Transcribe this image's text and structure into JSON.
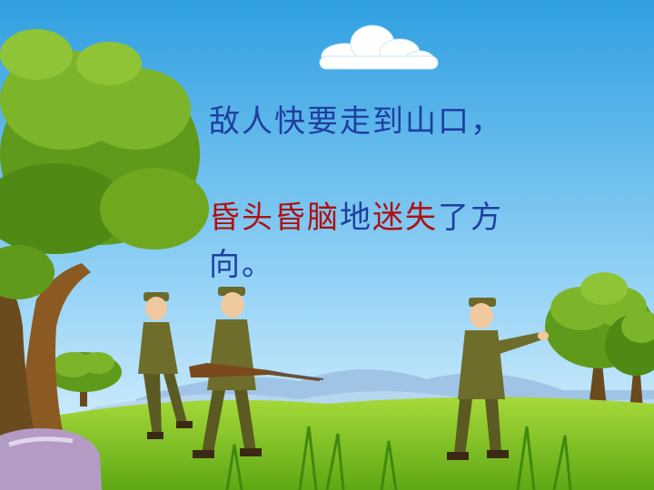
{
  "colors": {
    "sky_top": "#2f9fe0",
    "sky_bottom": "#d6f0ff",
    "grass": "#7fc61f",
    "tree": "#6f9f1c",
    "text_blue": "#1f3fa0",
    "text_red": "#b01010"
  },
  "text": {
    "line1": "敌人快要走到山口，",
    "line2_a": "昏头昏脑",
    "line2_b": "地",
    "line2_c": "迷失",
    "line2_d": "了方",
    "line3": "向。"
  },
  "illustration": {
    "icons": [
      "cloud-icon",
      "tree-icon",
      "mountain-icon",
      "soldier-icon",
      "rifle-icon",
      "rock-icon"
    ]
  }
}
